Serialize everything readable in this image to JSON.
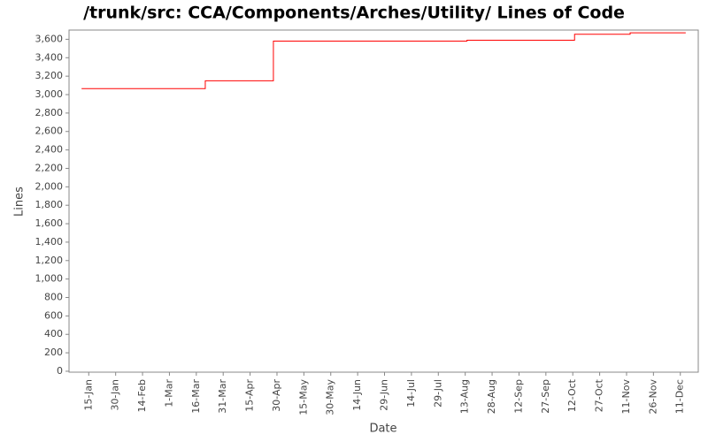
{
  "chart_data": {
    "type": "line",
    "step": "post",
    "title": "/trunk/src: CCA/Components/Arches/Utility/ Lines of Code",
    "x_label": "Date",
    "y_label": "Lines",
    "x": [
      "11-Jan",
      "21-Mar",
      "28-Apr",
      "14-Aug",
      "13-Oct",
      "13-Nov",
      "14-Dec"
    ],
    "series": [
      {
        "name": "Lines",
        "color": "#ff0000",
        "values": [
          3065,
          3150,
          3580,
          3590,
          3655,
          3670,
          3670
        ]
      }
    ],
    "xlim": [
      "4-Jan",
      "21-Dec"
    ],
    "xticks": [
      "15-Jan",
      "30-Jan",
      "14-Feb",
      "1-Mar",
      "16-Mar",
      "31-Mar",
      "15-Apr",
      "30-Apr",
      "15-May",
      "30-May",
      "14-Jun",
      "29-Jun",
      "14-Jul",
      "29-Jul",
      "13-Aug",
      "28-Aug",
      "12-Sep",
      "27-Sep",
      "12-Oct",
      "27-Oct",
      "11-Nov",
      "26-Nov",
      "11-Dec"
    ],
    "ylim": [
      -10,
      3700
    ],
    "yticks": [
      0,
      200,
      400,
      600,
      800,
      {
        "value": 1000,
        "label": "1,000"
      },
      {
        "value": 1200,
        "label": "1,200"
      },
      {
        "value": 1400,
        "label": "1,400"
      },
      {
        "value": 1600,
        "label": "1,600"
      },
      {
        "value": 1800,
        "label": "1,800"
      },
      {
        "value": 2000,
        "label": "2,000"
      },
      {
        "value": 2200,
        "label": "2,200"
      },
      {
        "value": 2400,
        "label": "2,400"
      },
      {
        "value": 2600,
        "label": "2,600"
      },
      {
        "value": 2800,
        "label": "2,800"
      },
      {
        "value": 3000,
        "label": "3,000"
      },
      {
        "value": 3200,
        "label": "3,200"
      },
      {
        "value": 3400,
        "label": "3,400"
      },
      {
        "value": 3600,
        "label": "3,600"
      }
    ],
    "grid": false
  }
}
